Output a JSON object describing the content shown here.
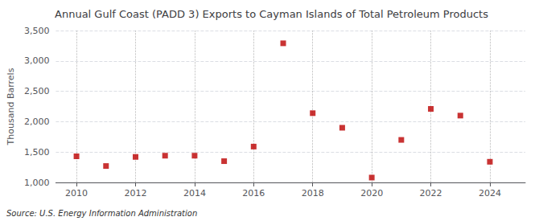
{
  "chart_data": {
    "type": "scatter",
    "title": "Annual Gulf Coast (PADD 3) Exports to Cayman Islands of Total Petroleum Products",
    "ylabel": "Thousand Barrels",
    "source": "Source: U.S. Energy Information Administration",
    "x": [
      2010,
      2011,
      2012,
      2013,
      2014,
      2015,
      2016,
      2017,
      2018,
      2019,
      2020,
      2021,
      2022,
      2023,
      2024
    ],
    "values": [
      1430,
      1270,
      1420,
      1440,
      1440,
      1350,
      1590,
      3290,
      2140,
      1900,
      1080,
      1700,
      2210,
      2100,
      1340
    ],
    "color": "#bb0000",
    "marker": "square",
    "xlim": [
      2009.3,
      2025.2
    ],
    "xticks": [
      2010,
      2012,
      2014,
      2016,
      2018,
      2020,
      2022,
      2024
    ],
    "ylim": [
      1000,
      3500
    ],
    "yticks": [
      {
        "value": 1000,
        "label": "1,000"
      },
      {
        "value": 1500,
        "label": "1,500"
      },
      {
        "value": 2000,
        "label": "2,000"
      },
      {
        "value": 2500,
        "label": "2,500"
      },
      {
        "value": 3000,
        "label": "3,000"
      },
      {
        "value": 3500,
        "label": "3,500"
      }
    ],
    "grid": true
  }
}
